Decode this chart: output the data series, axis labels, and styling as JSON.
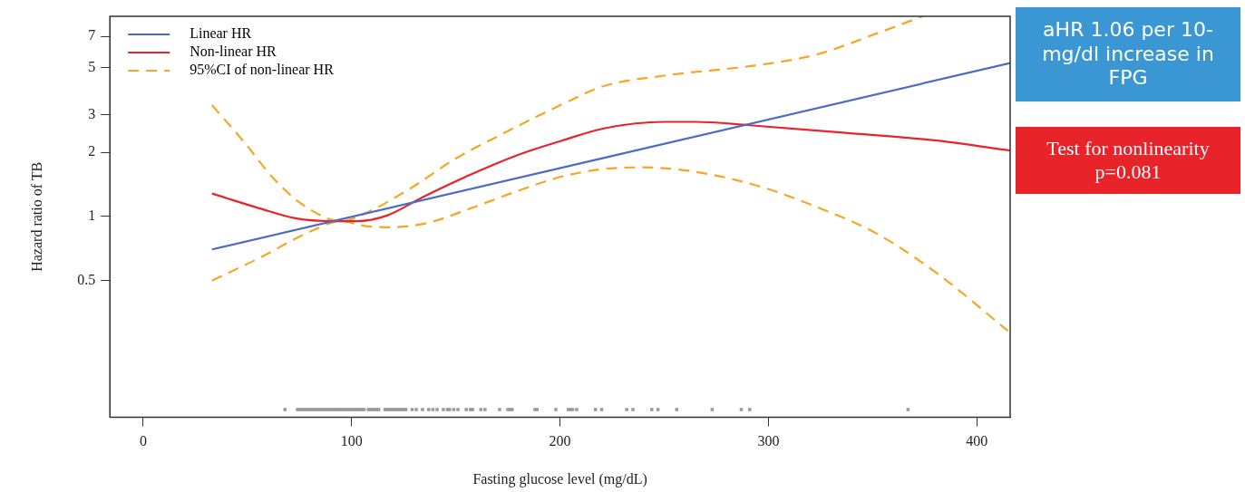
{
  "chart_data": {
    "type": "line",
    "xlabel": "Fasting glucose level (mg/dL)",
    "ylabel": "Hazard ratio of TB",
    "xlim": [
      -16,
      416
    ],
    "xticks": [
      0,
      100,
      200,
      300,
      400
    ],
    "ylim": [
      0.114,
      8.7
    ],
    "yticks": [
      0.5,
      1,
      2,
      3,
      5,
      7
    ],
    "log": "y",
    "grid": false,
    "legend": "top left",
    "series": [
      {
        "name": "Linear HR",
        "color": "#4a6cc4",
        "line_style": "solid",
        "x": [
          33,
          416
        ],
        "values": [
          0.7,
          5.25
        ]
      },
      {
        "name": "Non-linear HR",
        "color": "#e8232a",
        "line_style": "solid",
        "x": [
          33,
          56,
          73,
          91,
          102,
          117,
          134,
          157,
          179,
          201,
          221,
          250,
          265,
          291,
          337,
          381,
          416
        ],
        "values": [
          1.28,
          1.09,
          0.98,
          0.95,
          0.95,
          1.01,
          1.23,
          1.57,
          1.93,
          2.27,
          2.59,
          2.78,
          2.78,
          2.68,
          2.47,
          2.27,
          2.04
        ]
      },
      {
        "name": "95%CI of non-linear HR",
        "color": "#f5a623",
        "line_style": "dashed",
        "x": [
          33,
          49,
          63,
          78,
          95,
          107,
          128,
          150,
          172,
          201,
          221,
          250,
          294,
          323,
          352,
          374
        ],
        "values": [
          3.33,
          2.2,
          1.49,
          1.11,
          0.95,
          1.04,
          1.35,
          1.87,
          2.43,
          3.36,
          4.09,
          4.58,
          5.12,
          5.75,
          7.23,
          8.7
        ]
      },
      {
        "color": "#f5a623",
        "line_style": "dashed",
        "x": [
          33,
          56,
          78,
          95,
          107,
          118,
          136,
          157,
          179,
          201,
          221,
          240,
          265,
          294,
          323,
          352,
          381,
          415
        ],
        "values": [
          0.5,
          0.64,
          0.83,
          0.95,
          0.9,
          0.89,
          0.93,
          1.09,
          1.31,
          1.54,
          1.67,
          1.7,
          1.62,
          1.4,
          1.11,
          0.83,
          0.54,
          0.29
        ]
      },
      {
        "type": "scatter",
        "color": "#999999",
        "x": [
          68,
          74,
          75,
          76,
          77,
          78,
          79,
          80,
          81,
          82,
          83,
          84,
          85,
          86,
          87,
          88,
          89,
          90,
          91,
          92,
          93,
          94,
          95,
          96,
          97,
          98,
          99,
          100,
          101,
          102,
          103,
          104,
          105,
          106,
          108,
          109,
          110,
          111,
          112,
          113,
          116,
          117,
          118,
          119,
          120,
          121,
          122,
          123,
          124,
          125,
          126,
          129,
          131,
          134,
          137,
          139,
          141,
          144,
          146,
          147,
          149,
          151,
          155,
          157,
          158,
          162,
          164,
          171,
          175,
          176,
          177,
          188,
          189,
          198,
          204,
          205,
          206,
          208,
          217,
          220,
          232,
          235,
          244,
          247,
          256,
          273,
          287,
          291,
          367
        ],
        "values": [
          0.124,
          0.124,
          0.124,
          0.124,
          0.124,
          0.124,
          0.124,
          0.124,
          0.124,
          0.124,
          0.124,
          0.124,
          0.124,
          0.124,
          0.124,
          0.124,
          0.124,
          0.124,
          0.124,
          0.124,
          0.124,
          0.124,
          0.124,
          0.124,
          0.124,
          0.124,
          0.124,
          0.124,
          0.124,
          0.124,
          0.124,
          0.124,
          0.124,
          0.124,
          0.124,
          0.124,
          0.124,
          0.124,
          0.124,
          0.124,
          0.124,
          0.124,
          0.124,
          0.124,
          0.124,
          0.124,
          0.124,
          0.124,
          0.124,
          0.124,
          0.124,
          0.124,
          0.124,
          0.124,
          0.124,
          0.124,
          0.124,
          0.124,
          0.124,
          0.124,
          0.124,
          0.124,
          0.124,
          0.124,
          0.124,
          0.124,
          0.124,
          0.124,
          0.124,
          0.124,
          0.124,
          0.124,
          0.124,
          0.124,
          0.124,
          0.124,
          0.124,
          0.124,
          0.124,
          0.124,
          0.124,
          0.124,
          0.124,
          0.124,
          0.124,
          0.124,
          0.124,
          0.124,
          0.124
        ]
      }
    ],
    "annotations": [
      "aHR 1.06 per 10-mg/dl increase in FPG",
      "Test for nonlinearity p=0.081"
    ]
  }
}
